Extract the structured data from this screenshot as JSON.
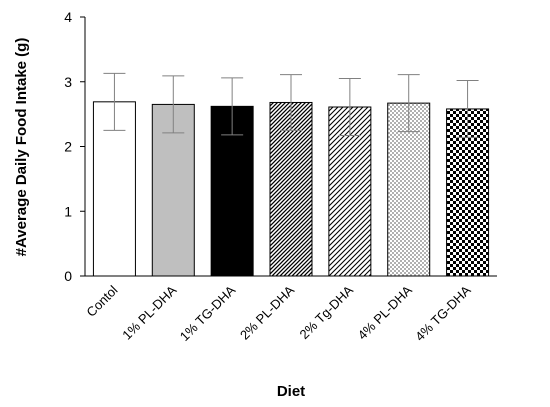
{
  "chart_data": {
    "type": "bar",
    "title": "",
    "xlabel": "Diet",
    "ylabel": "#Average Daily Food Intake (g)",
    "ylim": [
      0,
      4
    ],
    "yticks": [
      "0",
      "1",
      "2",
      "3",
      "4"
    ],
    "grid": false,
    "categories": [
      "Contol",
      "1% PL-DHA",
      "1% TG-DHA",
      "2% PL-DHA",
      "2% Tg-DHA",
      "4% PL-DHA",
      "4% TG-DHA"
    ],
    "values": [
      2.69,
      2.65,
      2.62,
      2.68,
      2.61,
      2.67,
      2.58
    ],
    "error": [
      0.44,
      0.44,
      0.44,
      0.43,
      0.44,
      0.44,
      0.44
    ],
    "fills": [
      "white",
      "gray",
      "black",
      "dense-diagonal",
      "diagonal",
      "light-checker",
      "checker"
    ],
    "colors": {
      "axis": "#000000",
      "solid_gray": "#bfbfbf",
      "error_bar": "#808080"
    }
  }
}
